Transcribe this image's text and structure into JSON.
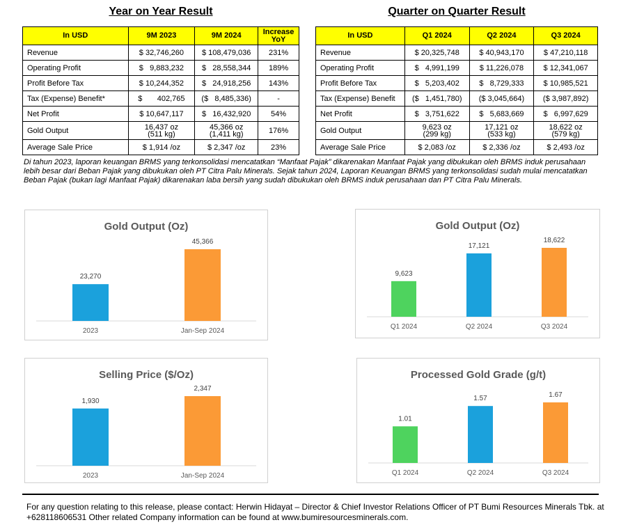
{
  "yoy": {
    "title": "Year on Year Result",
    "headers": [
      "In USD",
      "9M 2023",
      "9M 2024",
      "Increase YoY"
    ],
    "rows": [
      {
        "label": "Revenue",
        "c1": "$ 32,746,260",
        "c2": "$ 108,479,036",
        "c3": "231%"
      },
      {
        "label": "Operating Profit",
        "c1": "$   9,883,232",
        "c2": "$   28,558,344",
        "c3": "189%"
      },
      {
        "label": "Profit Before Tax",
        "c1": "$ 10,244,352",
        "c2": "$   24,918,256",
        "c3": "143%"
      },
      {
        "label": "Tax (Expense) Benefit*",
        "c1": "$       402,765",
        "c2": "($   8,485,336)",
        "c3": "-"
      },
      {
        "label": "Net Profit",
        "c1": "$ 10,647,117",
        "c2": "$   16,432,920",
        "c3": "54%"
      },
      {
        "label": "Gold Output",
        "c1": "16,437 oz",
        "c1b": "(511 kg)",
        "c2": "45,366 oz",
        "c2b": "(1,411 kg)",
        "c3": "176%"
      },
      {
        "label": "Average Sale Price",
        "c1": "$ 1,914 /oz",
        "c2": "$ 2,347 /oz",
        "c3": "23%"
      }
    ]
  },
  "qoq": {
    "title": "Quarter on Quarter Result",
    "headers": [
      "In USD",
      "Q1 2024",
      "Q2 2024",
      "Q3 2024"
    ],
    "rows": [
      {
        "label": "Revenue",
        "c1": "$ 20,325,748",
        "c2": "$ 40,943,170",
        "c3": "$ 47,210,118"
      },
      {
        "label": "Operating Profit",
        "c1": "$   4,991,199",
        "c2": "$ 11,226,078",
        "c3": "$ 12,341,067"
      },
      {
        "label": "Profit Before Tax",
        "c1": "$   5,203,402",
        "c2": "$   8,729,333",
        "c3": "$ 10,985,521"
      },
      {
        "label": "Tax (Expense) Benefit",
        "c1": "($   1,451,780)",
        "c2": "($ 3,045,664)",
        "c3": "($ 3,987,892)"
      },
      {
        "label": "Net Profit",
        "c1": "$   3,751,622",
        "c2": "$   5,683,669",
        "c3": "$   6,997,629"
      },
      {
        "label": "Gold Output",
        "c1": "9,623 oz",
        "c1b": "(299 kg)",
        "c2": "17,121 oz",
        "c2b": "(533 kg)",
        "c3": "18,622 oz",
        "c3b": "(579 kg)"
      },
      {
        "label": "Average Sale Price",
        "c1": "$ 2,083 /oz",
        "c2": "$ 2,336 /oz",
        "c3": "$ 2,493 /oz"
      }
    ]
  },
  "note": "Di tahun 2023, laporan keuangan BRMS yang terkonsolidasi mencatatkan “Manfaat Pajak” dikarenakan Manfaat Pajak yang dibukukan oleh BRMS induk perusahaan lebih besar dari Beban Pajak yang dibukukan oleh PT Citra Palu Minerals. Sejak tahun 2024, Laporan Keuangan BRMS yang terkonsolidasi sudah mulai mencatatkan Beban Pajak (bukan lagi Manfaat Pajak) dikarenakan laba bersih yang sudah dibukukan oleh BRMS induk perusahaan dan PT Citra Palu Minerals.",
  "colors": {
    "blue": "#1ba1dc",
    "orange": "#fb9a36",
    "green": "#4ed35e",
    "header_yellow": "#ffff00"
  },
  "chart_data": [
    {
      "type": "bar",
      "title": "Gold Output (Oz)",
      "categories": [
        "2023",
        "Jan-Sep 2024"
      ],
      "values": [
        23270,
        45366
      ],
      "labels": [
        "23,270",
        "45,366"
      ],
      "bar_colors": [
        "#1ba1dc",
        "#fb9a36"
      ],
      "grid": false,
      "legend": "none"
    },
    {
      "type": "bar",
      "title": "Gold Output (Oz)",
      "categories": [
        "Q1 2024",
        "Q2 2024",
        "Q3 2024"
      ],
      "values": [
        9623,
        17121,
        18622
      ],
      "labels": [
        "9,623",
        "17,121",
        "18,622"
      ],
      "bar_colors": [
        "#4ed35e",
        "#1ba1dc",
        "#fb9a36"
      ],
      "grid": false,
      "legend": "none"
    },
    {
      "type": "bar",
      "title": "Selling Price ($/Oz)",
      "categories": [
        "2023",
        "Jan-Sep 2024"
      ],
      "values": [
        1930,
        2347
      ],
      "labels": [
        "1,930",
        "2,347"
      ],
      "bar_colors": [
        "#1ba1dc",
        "#fb9a36"
      ],
      "grid": false,
      "legend": "none"
    },
    {
      "type": "bar",
      "title": "Processed Gold Grade (g/t)",
      "categories": [
        "Q1 2024",
        "Q2 2024",
        "Q3 2024"
      ],
      "values": [
        1.01,
        1.57,
        1.67
      ],
      "labels": [
        "1.01",
        "1.57",
        "1.67"
      ],
      "bar_colors": [
        "#4ed35e",
        "#1ba1dc",
        "#fb9a36"
      ],
      "grid": false,
      "legend": "none"
    }
  ],
  "footer": "For any question relating to this release, please contact: Herwin Hidayat – Director & Chief Investor Relations Officer of PT Bumi Resources Minerals Tbk. at +628118606531 Other related Company information can be found at www.bumiresourcesminerals.com."
}
